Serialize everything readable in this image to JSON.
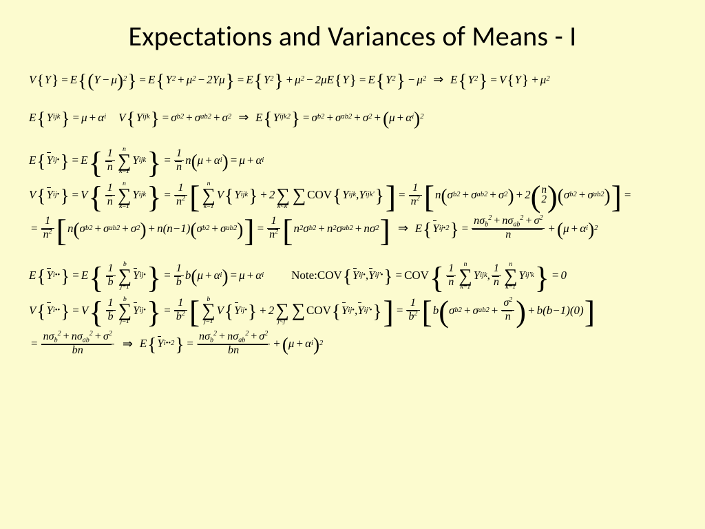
{
  "background_color": "#fcfbcf",
  "title": "Expectations and Variances of Means - I",
  "title_fontsize": 40,
  "body_fontsize": 17,
  "font_family": "Times New Roman",
  "text_color": "#000000",
  "s": {
    "mu": "μ",
    "alpha": "α",
    "sigma": "σ",
    "Sigma": "∑",
    "Rightarrow": "⇒",
    "dot": "•"
  },
  "t": {
    "V": "V",
    "E": "E",
    "Y": "Y",
    "n": "n",
    "b": "b",
    "eq": "=",
    "plus": "+",
    "minus": "−",
    "two": "2",
    "one": "1",
    "lt": "<",
    "COV": "COV",
    "Note": "Note: ",
    "comma": ",",
    "zero": "0",
    "i": "i",
    "j": "j",
    "k": "k",
    "ijk": "ijk",
    "ij": "ij",
    "kprime": "k'",
    "jprime": "j'",
    "ijprime": "ij'",
    "ab": "ab",
    "nn1": "n(n−1)",
    "b1": "b(b−1)(0)",
    "bn": "bn"
  }
}
